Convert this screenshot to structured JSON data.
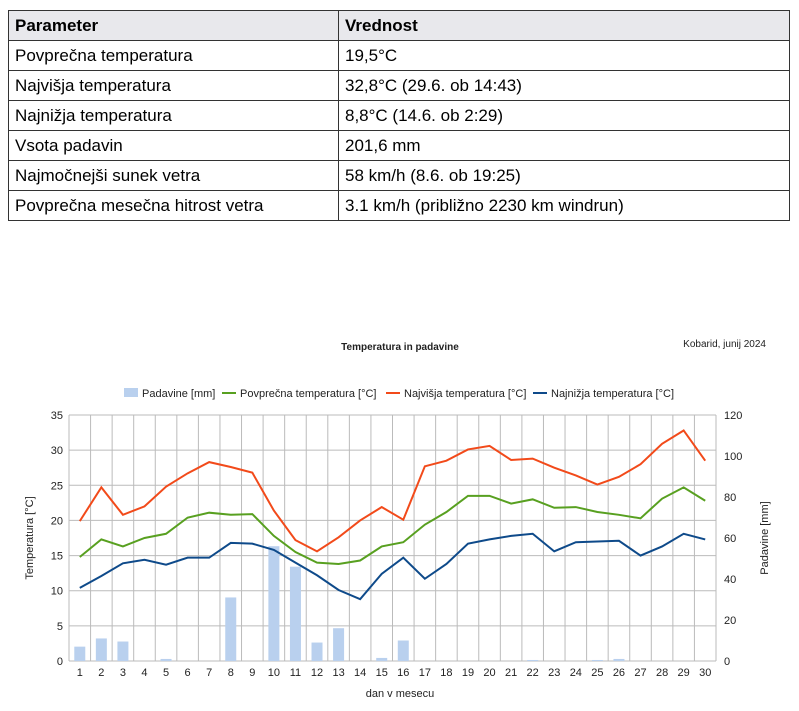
{
  "table": {
    "headers": [
      "Parameter",
      "Vrednost"
    ],
    "rows": [
      [
        "Povprečna temperatura",
        "19,5°C"
      ],
      [
        "Najvišja temperatura",
        "32,8°C (29.6. ob 14:43)"
      ],
      [
        "Najnižja temperatura",
        "8,8°C (14.6. ob 2:29)"
      ],
      [
        "Vsota padavin",
        "201,6 mm"
      ],
      [
        "Najmočnejši sunek vetra",
        "58 km/h (8.6. ob 19:25)"
      ],
      [
        "Povprečna mesečna hitrost vetra",
        "3.1 km/h (približno 2230 km windrun)"
      ]
    ]
  },
  "chart_data": {
    "type": "bar+line",
    "title": "Temperatura in padavine",
    "subtitle": "Kobarid, junij 2024",
    "xlabel": "dan v mesecu",
    "ylabel": "Temperatura [°C]",
    "y2label": "Padavine [mm]",
    "ylim": [
      0,
      35
    ],
    "y2lim": [
      0,
      120
    ],
    "yticks": [
      0,
      5,
      10,
      15,
      20,
      25,
      30,
      35
    ],
    "y2ticks": [
      0,
      20,
      40,
      60,
      80,
      100,
      120
    ],
    "legend_position": "top",
    "categories": [
      "1",
      "2",
      "3",
      "4",
      "5",
      "6",
      "7",
      "8",
      "9",
      "10",
      "11",
      "12",
      "13",
      "14",
      "15",
      "16",
      "17",
      "18",
      "19",
      "20",
      "21",
      "22",
      "23",
      "24",
      "25",
      "26",
      "27",
      "28",
      "29",
      "30"
    ],
    "bars": {
      "name": "Padavine [mm]",
      "color": "#b9d0ee",
      "values": [
        7,
        11,
        9.5,
        0,
        1,
        0,
        0,
        31,
        0,
        56,
        46,
        9,
        16,
        0,
        1.5,
        10,
        0,
        0,
        0,
        0,
        0,
        0.5,
        0,
        0,
        0.5,
        1,
        0,
        0,
        0,
        0
      ]
    },
    "series": [
      {
        "name": "Povprečna temperatura [°C]",
        "color": "#58a020",
        "values": [
          14.8,
          17.3,
          16.3,
          17.5,
          18.1,
          20.4,
          21.1,
          20.8,
          20.9,
          17.8,
          15.5,
          14.0,
          13.8,
          14.3,
          16.3,
          16.9,
          19.4,
          21.2,
          23.5,
          23.5,
          22.4,
          23.0,
          21.8,
          21.9,
          21.2,
          20.8,
          20.3,
          23.1,
          24.7,
          22.8
        ]
      },
      {
        "name": "Najvišja temperatura [°C]",
        "color": "#f24a1a",
        "values": [
          19.9,
          24.7,
          20.8,
          22.0,
          24.8,
          26.7,
          28.3,
          27.6,
          26.8,
          21.4,
          17.2,
          15.6,
          17.6,
          20.0,
          21.9,
          20.1,
          27.7,
          28.5,
          30.1,
          30.6,
          28.6,
          28.8,
          27.5,
          26.4,
          25.1,
          26.2,
          28.0,
          30.9,
          32.8,
          28.5
        ]
      },
      {
        "name": "Najnižja temperatura [°C]",
        "color": "#0e4a8a",
        "values": [
          10.4,
          12.1,
          13.9,
          14.4,
          13.7,
          14.7,
          14.7,
          16.8,
          16.7,
          15.8,
          14.0,
          12.2,
          10.1,
          8.8,
          12.4,
          14.7,
          11.7,
          13.8,
          16.7,
          17.3,
          17.8,
          18.1,
          15.6,
          16.9,
          17.0,
          17.1,
          15.0,
          16.3,
          18.1,
          17.3
        ]
      }
    ]
  }
}
